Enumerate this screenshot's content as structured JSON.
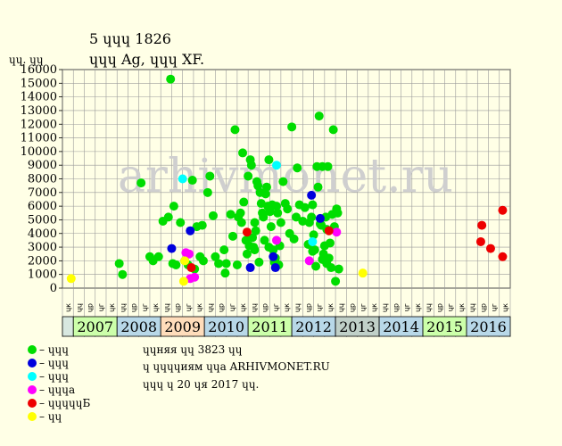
{
  "header": {
    "title": "5 ɥɥɥ 1826",
    "subtitle": "ɥɥɥ Ag, ɥɥɥ XF.",
    "y_unit": "ɥɥ. ɥɥ"
  },
  "footer": {
    "line1": "ɥɥняя ɥɥ 3823 ɥɥ",
    "line2": "ɥ ɥɥɥɥиям ɥɥа ARHIVMONET.RU",
    "line3": "ɥɥɥ ɥ 20 ɥя 2017 ɥɥ."
  },
  "watermark": "arhivmonet.ru",
  "legend": [
    {
      "label": "– ɥɥɥ",
      "color": "#00dd00"
    },
    {
      "label": "– ɥɥɥ",
      "color": "#0000dd"
    },
    {
      "label": "– ɥɥɥ",
      "color": "#00ffff"
    },
    {
      "label": "– ɥɥɥа",
      "color": "#ff00ff"
    },
    {
      "label": "– ɥɥɥɥɥБ",
      "color": "#ee0000"
    },
    {
      "label": "– ɥɥ",
      "color": "#ffff00"
    }
  ],
  "colors": {
    "background": "#ffffe6",
    "plot_bg": "#ffffe6",
    "grid": "#9a9a9a",
    "year_odd": "#ccffaa",
    "year_even": "#b8d8e8",
    "year_2009": "#ffddbb",
    "year_2013": "#c0d0c8",
    "first_cell": "#d8e8e0"
  },
  "chart_data": {
    "type": "scatter",
    "title": "5 ɥɥɥ 1826",
    "ylabel": "ɥɥ. ɥɥ",
    "ylim": [
      0,
      16000
    ],
    "yticks": [
      0,
      1000,
      2000,
      3000,
      4000,
      5000,
      6000,
      7000,
      8000,
      9000,
      10000,
      11000,
      12000,
      13000,
      14000,
      15000,
      16000
    ],
    "quarter_labels": [
      "ɥɥ",
      "ɥр",
      "ɥг",
      "ɥк"
    ],
    "x_cols": 41,
    "first_col_label": "ɥк",
    "years": [
      "2007",
      "2008",
      "2009",
      "2010",
      "2011",
      "2012",
      "2013",
      "2014",
      "2015",
      "2016"
    ],
    "grid": true,
    "series": [
      {
        "name": "ɥɥɥ",
        "color": "#00dd00",
        "points": [
          [
            5.2,
            1800
          ],
          [
            5.5,
            1000
          ],
          [
            7.2,
            7700
          ],
          [
            8.0,
            2300
          ],
          [
            8.3,
            2000
          ],
          [
            8.8,
            2300
          ],
          [
            9.2,
            4900
          ],
          [
            9.7,
            5200
          ],
          [
            9.9,
            15300
          ],
          [
            10.1,
            1800
          ],
          [
            10.2,
            6000
          ],
          [
            10.4,
            1700
          ],
          [
            10.8,
            4800
          ],
          [
            11.2,
            2000
          ],
          [
            11.5,
            1700
          ],
          [
            11.9,
            7900
          ],
          [
            12.1,
            1400
          ],
          [
            12.3,
            4500
          ],
          [
            12.6,
            2300
          ],
          [
            12.8,
            4600
          ],
          [
            12.9,
            2000
          ],
          [
            13.5,
            8200
          ],
          [
            13.3,
            7000
          ],
          [
            13.8,
            5300
          ],
          [
            14.0,
            2300
          ],
          [
            14.3,
            1800
          ],
          [
            14.8,
            2800
          ],
          [
            14.9,
            1100
          ],
          [
            15.0,
            1800
          ],
          [
            15.4,
            5400
          ],
          [
            15.6,
            3800
          ],
          [
            15.8,
            11600
          ],
          [
            16.0,
            1700
          ],
          [
            16.1,
            5200
          ],
          [
            16.3,
            5500
          ],
          [
            16.4,
            4800
          ],
          [
            16.5,
            9900
          ],
          [
            16.6,
            6300
          ],
          [
            16.8,
            3500
          ],
          [
            16.9,
            2500
          ],
          [
            17.0,
            8200
          ],
          [
            17.2,
            9400
          ],
          [
            17.3,
            9000
          ],
          [
            17.4,
            3700
          ],
          [
            17.5,
            3000
          ],
          [
            17.6,
            2800
          ],
          [
            17.7,
            4200
          ],
          [
            17.8,
            7800
          ],
          [
            17.9,
            7500
          ],
          [
            18.0,
            1900
          ],
          [
            18.1,
            7000
          ],
          [
            18.2,
            6200
          ],
          [
            18.3,
            5500
          ],
          [
            18.4,
            5200
          ],
          [
            18.6,
            6900
          ],
          [
            18.7,
            7400
          ],
          [
            18.8,
            6000
          ],
          [
            18.9,
            9400
          ],
          [
            19.0,
            5600
          ],
          [
            19.1,
            4500
          ],
          [
            19.2,
            6100
          ],
          [
            19.3,
            2800
          ],
          [
            19.4,
            1900
          ],
          [
            19.5,
            2200
          ],
          [
            19.6,
            6000
          ],
          [
            19.7,
            5500
          ],
          [
            19.8,
            1700
          ],
          [
            20.0,
            4800
          ],
          [
            20.2,
            7800
          ],
          [
            20.4,
            6200
          ],
          [
            20.6,
            5800
          ],
          [
            20.8,
            4000
          ],
          [
            21.0,
            11800
          ],
          [
            21.2,
            3600
          ],
          [
            21.4,
            5200
          ],
          [
            21.5,
            8800
          ],
          [
            21.7,
            6100
          ],
          [
            22.0,
            4900
          ],
          [
            22.2,
            5900
          ],
          [
            22.5,
            3200
          ],
          [
            22.6,
            4800
          ],
          [
            22.8,
            5200
          ],
          [
            22.9,
            6100
          ],
          [
            23.0,
            3900
          ],
          [
            23.1,
            2800
          ],
          [
            23.2,
            1600
          ],
          [
            23.3,
            8900
          ],
          [
            23.4,
            7400
          ],
          [
            23.5,
            12600
          ],
          [
            23.6,
            4700
          ],
          [
            23.7,
            4600
          ],
          [
            23.8,
            8900
          ],
          [
            23.9,
            2500
          ],
          [
            24.0,
            3100
          ],
          [
            24.1,
            5200
          ],
          [
            24.2,
            1800
          ],
          [
            24.3,
            8900
          ],
          [
            24.4,
            2200
          ],
          [
            24.5,
            3300
          ],
          [
            24.6,
            1500
          ],
          [
            24.7,
            5400
          ],
          [
            24.8,
            11600
          ],
          [
            24.9,
            4500
          ],
          [
            25.0,
            500
          ],
          [
            25.1,
            5800
          ],
          [
            25.2,
            5500
          ],
          [
            25.3,
            1400
          ],
          [
            24.2,
            4300
          ],
          [
            23.8,
            2100
          ],
          [
            22.9,
            2700
          ],
          [
            19.9,
            3100
          ],
          [
            18.5,
            3500
          ],
          [
            17.1,
            3100
          ],
          [
            17.6,
            4800
          ],
          [
            18.9,
            3000
          ]
        ]
      },
      {
        "name": "ɥɥɥ",
        "color": "#0000dd",
        "points": [
          [
            10.0,
            2900
          ],
          [
            11.7,
            4200
          ],
          [
            17.2,
            1500
          ],
          [
            19.3,
            2300
          ],
          [
            19.5,
            1500
          ],
          [
            22.8,
            6800
          ],
          [
            23.6,
            5100
          ]
        ]
      },
      {
        "name": "ɥɥɥ",
        "color": "#00ffff",
        "points": [
          [
            11.0,
            8000
          ],
          [
            19.6,
            9000
          ],
          [
            22.9,
            3400
          ]
        ]
      },
      {
        "name": "ɥɥɥа",
        "color": "#ff00ff",
        "points": [
          [
            11.3,
            2600
          ],
          [
            11.6,
            2500
          ],
          [
            11.7,
            700
          ],
          [
            12.1,
            800
          ],
          [
            19.6,
            3500
          ],
          [
            22.6,
            2000
          ],
          [
            25.1,
            4100
          ]
        ]
      },
      {
        "name": "ɥɥɥɥɥБ",
        "color": "#ee0000",
        "points": [
          [
            11.8,
            1500
          ],
          [
            16.9,
            4100
          ],
          [
            24.4,
            4200
          ],
          [
            38.4,
            4600
          ],
          [
            38.3,
            3400
          ],
          [
            39.2,
            2900
          ],
          [
            40.3,
            5700
          ],
          [
            40.3,
            2300
          ]
        ]
      },
      {
        "name": "ɥɥ",
        "color": "#ffff00",
        "points": [
          [
            0.8,
            700
          ],
          [
            11.1,
            500
          ],
          [
            11.2,
            2000
          ],
          [
            27.5,
            1100
          ]
        ]
      }
    ]
  }
}
